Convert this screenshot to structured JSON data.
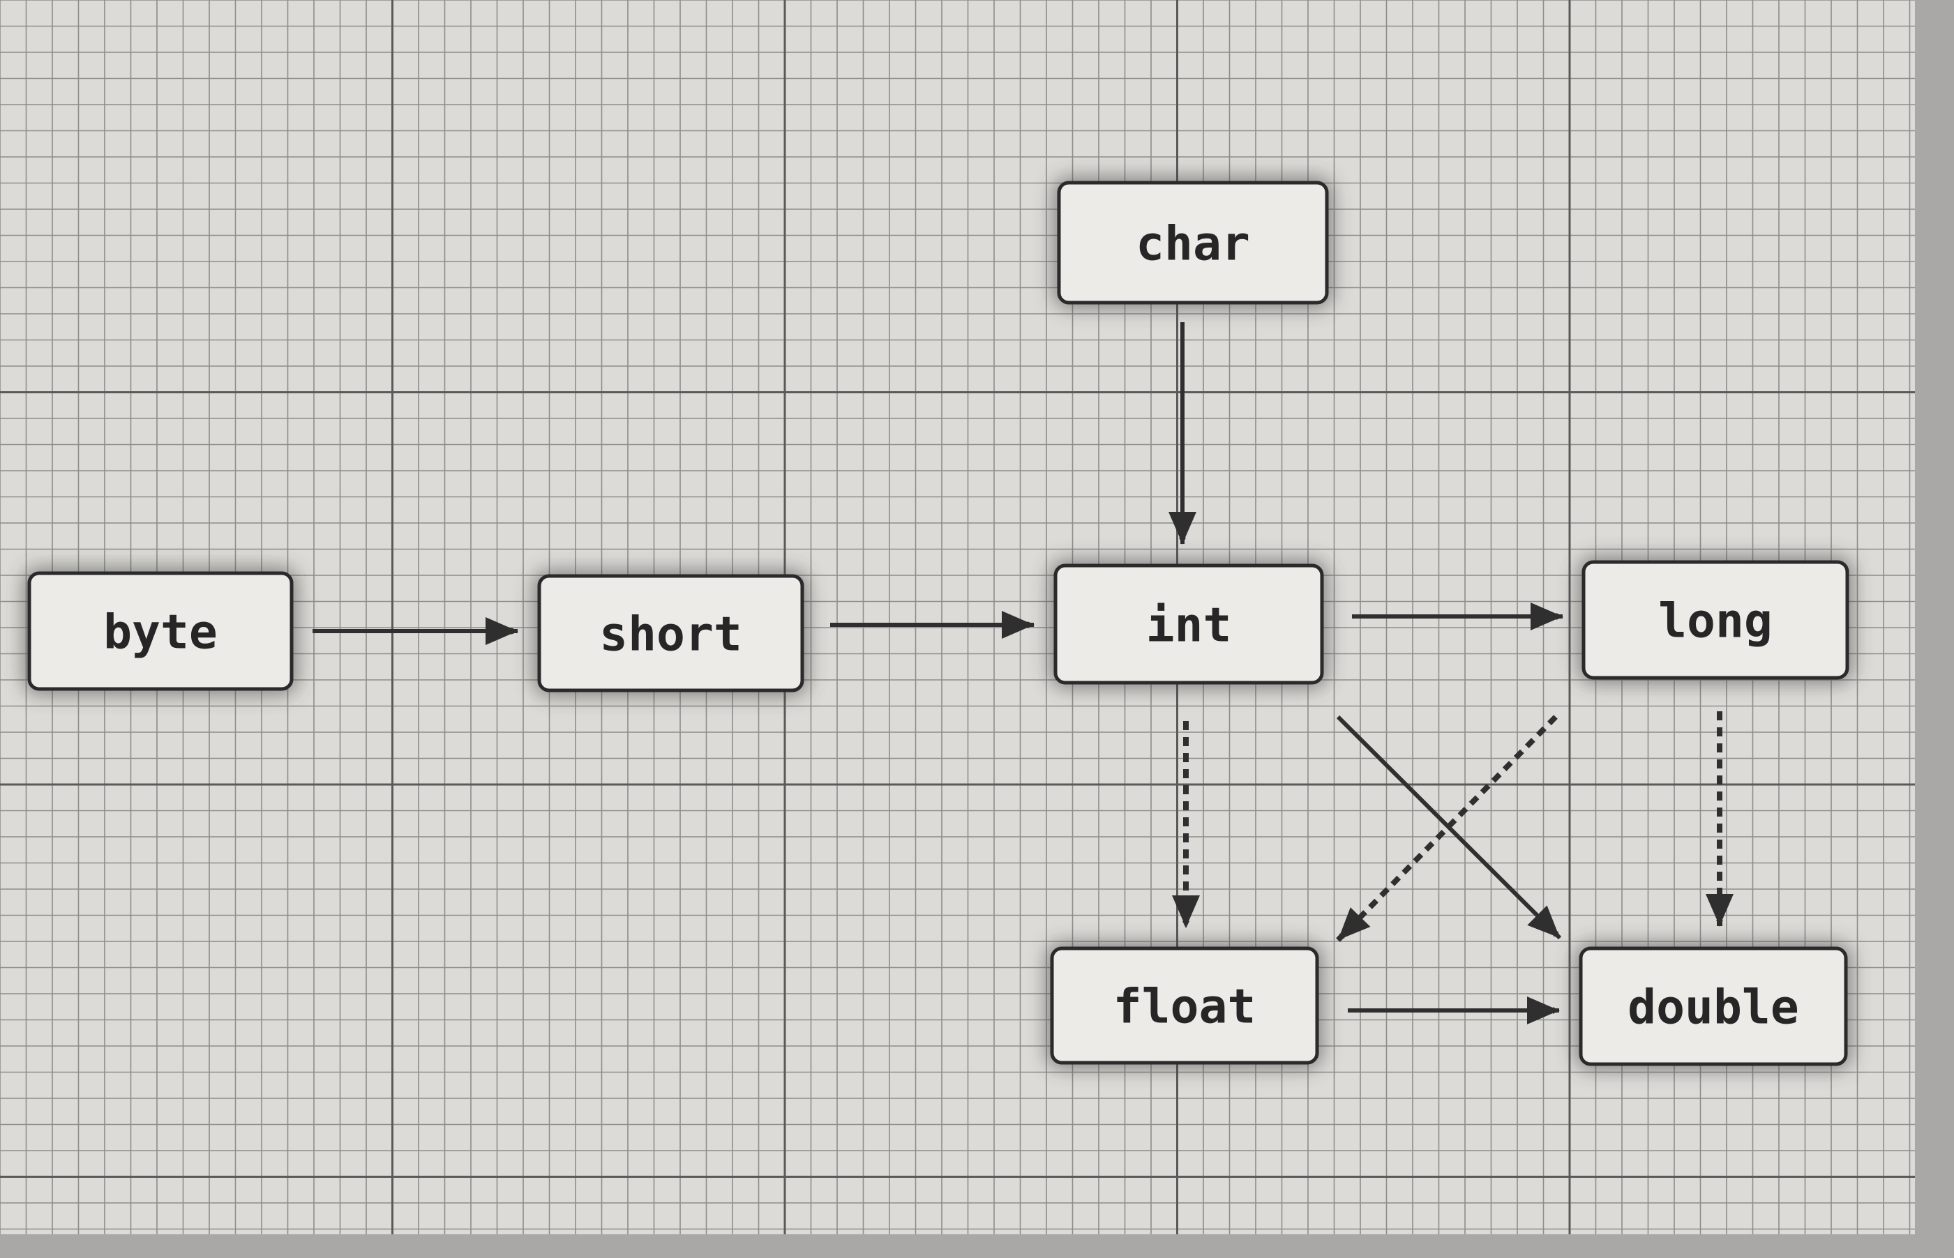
{
  "nodes": [
    {
      "id": "char",
      "label": "char"
    },
    {
      "id": "byte",
      "label": "byte"
    },
    {
      "id": "short",
      "label": "short"
    },
    {
      "id": "int",
      "label": "int"
    },
    {
      "id": "long",
      "label": "long"
    },
    {
      "id": "float",
      "label": "float"
    },
    {
      "id": "double",
      "label": "double"
    }
  ],
  "edges": [
    {
      "from": "byte",
      "to": "short",
      "style": "solid"
    },
    {
      "from": "short",
      "to": "int",
      "style": "solid"
    },
    {
      "from": "char",
      "to": "int",
      "style": "solid"
    },
    {
      "from": "int",
      "to": "long",
      "style": "solid"
    },
    {
      "from": "int",
      "to": "double",
      "style": "solid"
    },
    {
      "from": "float",
      "to": "double",
      "style": "solid"
    },
    {
      "from": "int",
      "to": "float",
      "style": "dashed"
    },
    {
      "from": "long",
      "to": "float",
      "style": "dashed"
    },
    {
      "from": "long",
      "to": "double",
      "style": "dashed"
    }
  ],
  "colors": {
    "paper": "#dcdbd7",
    "grid_fine": "#8d8d8a",
    "grid_major": "#5a5a58",
    "box_fill": "#ecebe8",
    "ink": "#2a2a2a",
    "border": "#a9a8a6"
  }
}
